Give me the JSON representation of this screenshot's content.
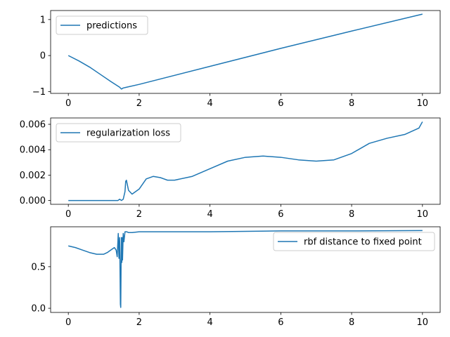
{
  "chart_data": [
    {
      "type": "line",
      "legend_position": "upper-left",
      "xlim": [
        -0.5,
        10.5
      ],
      "ylim": [
        -1.05,
        1.25
      ],
      "xticks": [
        0,
        2,
        4,
        6,
        8,
        10
      ],
      "yticks": [
        -1,
        0,
        1
      ],
      "grid": false,
      "color": "#1f77b4",
      "series": [
        {
          "name": "predictions",
          "x": [
            0,
            0.3,
            0.6,
            0.9,
            1.2,
            1.45,
            1.5,
            1.55,
            1.6,
            2,
            4,
            6,
            8,
            10
          ],
          "y": [
            0,
            -0.15,
            -0.32,
            -0.52,
            -0.72,
            -0.88,
            -0.93,
            -0.9,
            -0.89,
            -0.8,
            -0.3,
            0.2,
            0.68,
            1.15
          ]
        }
      ]
    },
    {
      "type": "line",
      "legend_position": "upper-left",
      "xlim": [
        -0.5,
        10.5
      ],
      "ylim": [
        -0.0003,
        0.0065
      ],
      "xticks": [
        0,
        2,
        4,
        6,
        8,
        10
      ],
      "yticks": [
        0.0,
        0.002,
        0.004,
        0.006
      ],
      "ytick_labels": [
        "0.000",
        "0.002",
        "0.004",
        "0.006"
      ],
      "grid": false,
      "color": "#1f77b4",
      "series": [
        {
          "name": "regularization loss",
          "x": [
            0,
            1.4,
            1.45,
            1.5,
            1.55,
            1.6,
            1.62,
            1.64,
            1.7,
            1.8,
            2.0,
            2.2,
            2.4,
            2.6,
            2.8,
            3.0,
            3.5,
            4.0,
            4.5,
            5.0,
            5.5,
            6.0,
            6.5,
            7.0,
            7.5,
            8.0,
            8.5,
            9.0,
            9.5,
            9.9,
            10.0
          ],
          "y": [
            0,
            0,
            0.0001,
            0,
            0.0001,
            0.0007,
            0.0015,
            0.0016,
            0.0008,
            0.0005,
            0.0009,
            0.0017,
            0.0019,
            0.0018,
            0.0016,
            0.0016,
            0.0019,
            0.0025,
            0.0031,
            0.0034,
            0.0035,
            0.0034,
            0.0032,
            0.0031,
            0.0032,
            0.0037,
            0.0045,
            0.0049,
            0.0052,
            0.0057,
            0.0062
          ]
        }
      ]
    },
    {
      "type": "line",
      "legend_position": "upper-right",
      "xlim": [
        -0.5,
        10.5
      ],
      "ylim": [
        -0.05,
        0.98
      ],
      "xticks": [
        0,
        2,
        4,
        6,
        8,
        10
      ],
      "yticks": [
        0.0,
        0.5
      ],
      "ytick_labels": [
        "0.0",
        "0.5"
      ],
      "grid": false,
      "color": "#1f77b4",
      "series": [
        {
          "name": "rbf distance to fixed point",
          "x": [
            0,
            0.2,
            0.4,
            0.6,
            0.8,
            1.0,
            1.1,
            1.2,
            1.3,
            1.35,
            1.38,
            1.41,
            1.43,
            1.45,
            1.47,
            1.48,
            1.49,
            1.5,
            1.51,
            1.52,
            1.53,
            1.55,
            1.57,
            1.6,
            1.65,
            1.7,
            1.8,
            2.0,
            3,
            4,
            6,
            8,
            10
          ],
          "y": [
            0.75,
            0.73,
            0.7,
            0.67,
            0.65,
            0.65,
            0.67,
            0.7,
            0.73,
            0.7,
            0.62,
            0.9,
            0.6,
            0.85,
            0.05,
            0.01,
            0.55,
            0.85,
            0.55,
            0.85,
            0.58,
            0.9,
            0.8,
            0.92,
            0.92,
            0.91,
            0.91,
            0.92,
            0.92,
            0.92,
            0.93,
            0.93,
            0.935
          ]
        }
      ]
    }
  ]
}
